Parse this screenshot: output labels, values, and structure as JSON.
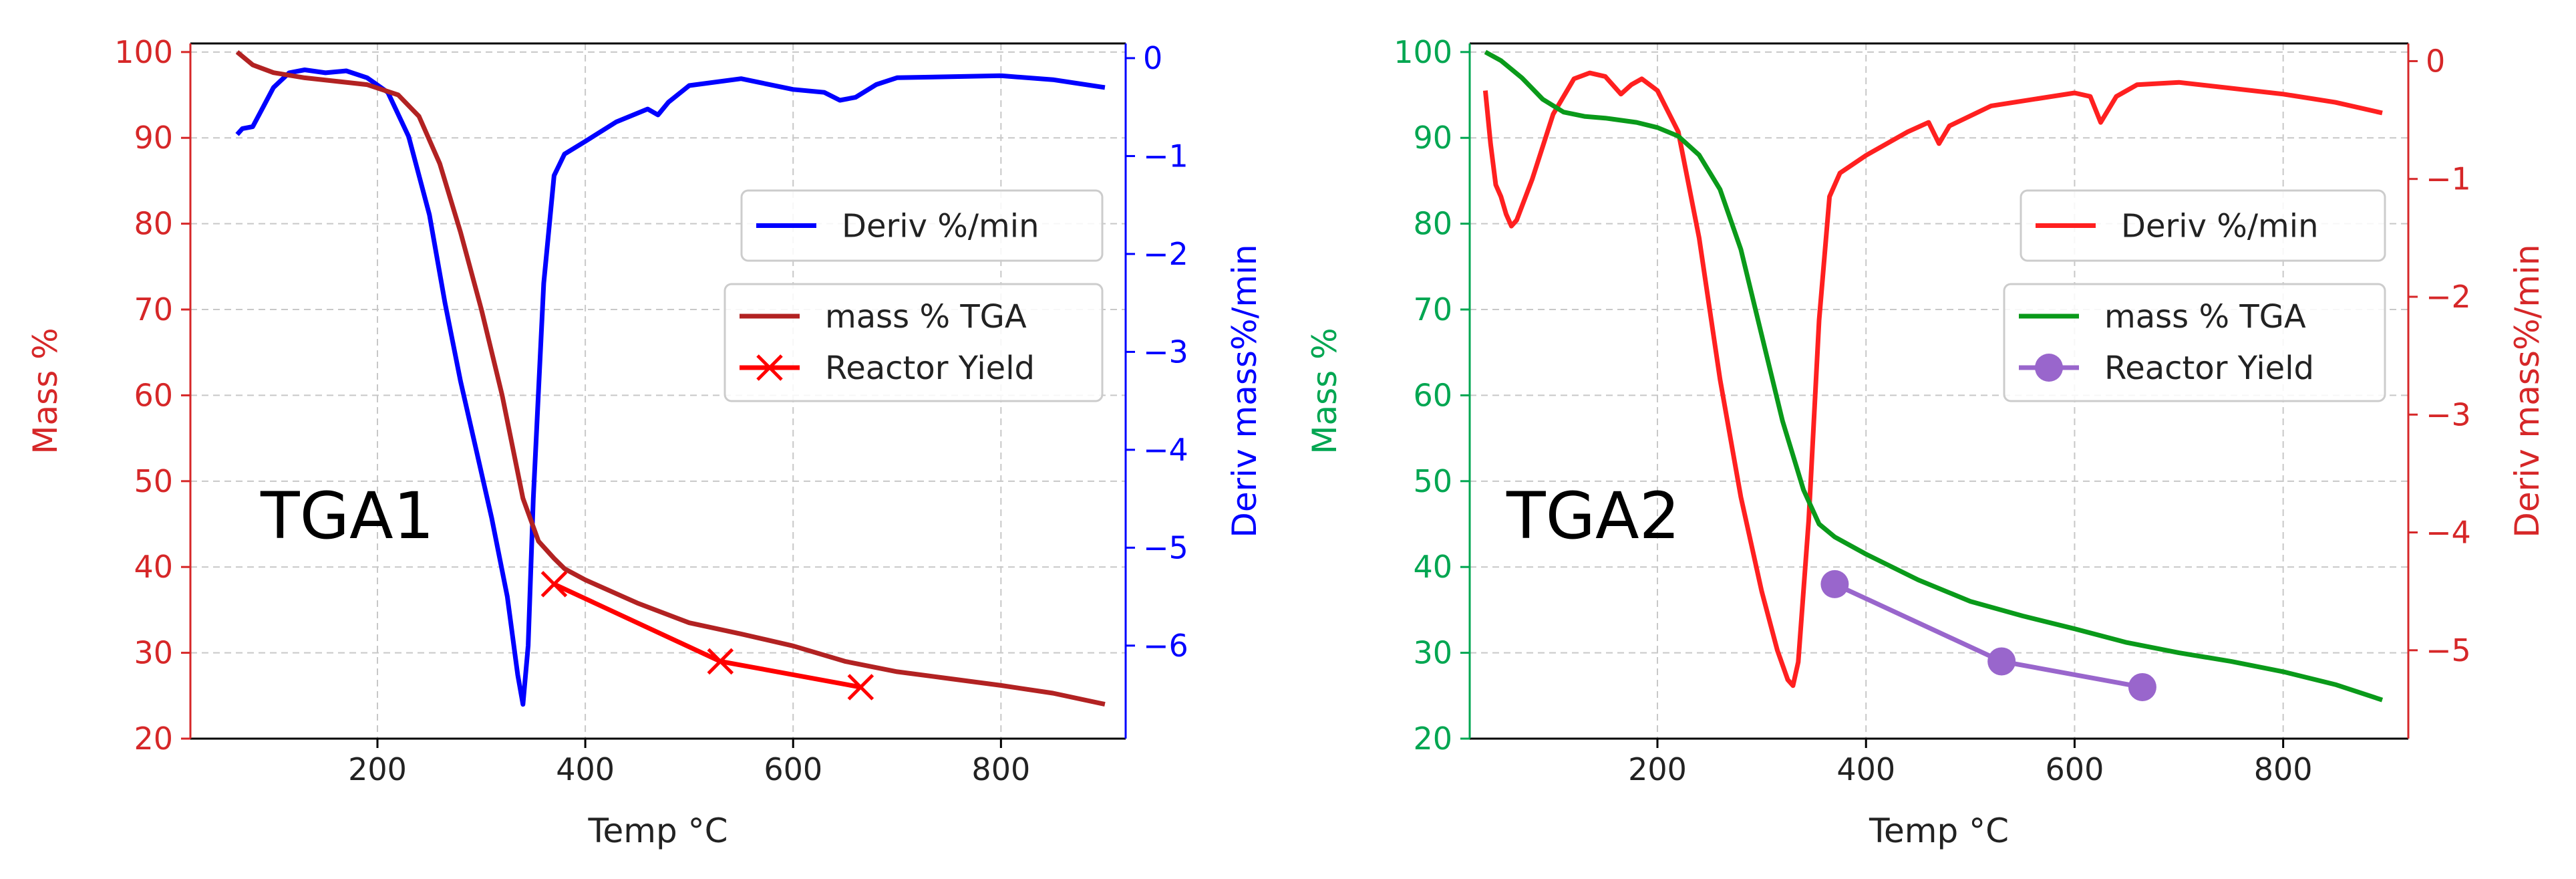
{
  "chart_data": [
    {
      "type": "line",
      "title_label": "TGA1",
      "xlabel": "Temp °C",
      "ylabel_left": "Mass %",
      "ylabel_right": "Deriv mass%/min",
      "xlim": [
        20,
        920
      ],
      "ylim_left": [
        20,
        101
      ],
      "ylim_right": [
        -6.95,
        0.15
      ],
      "x_ticks": [
        200,
        400,
        600,
        800
      ],
      "y_ticks_left": [
        20,
        30,
        40,
        50,
        60,
        70,
        80,
        90,
        100
      ],
      "y_ticks_right": [
        0,
        -1,
        -2,
        -3,
        -4,
        -5,
        -6
      ],
      "grid": true,
      "colors": {
        "left_axis": "#d62728",
        "right_axis": "#0000ff",
        "mass": "#b22222",
        "deriv": "#0000ff",
        "yield": "#ff0000"
      },
      "series": [
        {
          "name": "mass % TGA",
          "axis": "left",
          "x": [
            65,
            80,
            100,
            130,
            160,
            190,
            220,
            240,
            260,
            280,
            300,
            320,
            340,
            355,
            370,
            380,
            400,
            450,
            500,
            550,
            600,
            650,
            700,
            750,
            800,
            850,
            900
          ],
          "y": [
            100,
            98.5,
            97.6,
            97,
            96.6,
            96.2,
            95,
            92.5,
            87,
            79,
            70,
            60,
            48,
            43,
            41,
            39.8,
            38.5,
            35.8,
            33.5,
            32.2,
            30.8,
            29,
            27.8,
            27,
            26.2,
            25.3,
            24
          ]
        },
        {
          "name": "Deriv %/min",
          "axis": "right",
          "x": [
            65,
            70,
            80,
            90,
            100,
            115,
            130,
            150,
            170,
            190,
            210,
            230,
            250,
            265,
            280,
            295,
            310,
            325,
            335,
            340,
            345,
            350,
            360,
            370,
            380,
            400,
            430,
            460,
            470,
            480,
            500,
            550,
            600,
            630,
            645,
            660,
            680,
            700,
            800,
            850,
            900
          ],
          "y": [
            -0.78,
            -0.72,
            -0.7,
            -0.5,
            -0.3,
            -0.15,
            -0.12,
            -0.15,
            -0.13,
            -0.2,
            -0.35,
            -0.8,
            -1.6,
            -2.5,
            -3.3,
            -4.0,
            -4.7,
            -5.5,
            -6.3,
            -6.6,
            -6.0,
            -4.5,
            -2.3,
            -1.2,
            -0.98,
            -0.85,
            -0.65,
            -0.52,
            -0.58,
            -0.45,
            -0.28,
            -0.21,
            -0.32,
            -0.35,
            -0.43,
            -0.4,
            -0.27,
            -0.2,
            -0.18,
            -0.22,
            -0.3
          ]
        },
        {
          "name": "Reactor Yield",
          "axis": "left",
          "marker": "x",
          "x": [
            370,
            530,
            665
          ],
          "y": [
            38,
            29,
            26
          ]
        }
      ],
      "legend": [
        {
          "label": "Deriv %/min"
        },
        {
          "label": "mass % TGA"
        },
        {
          "label": "Reactor Yield"
        }
      ]
    },
    {
      "type": "line",
      "title_label": "TGA2",
      "xlabel": "Temp °C",
      "ylabel_left": "Mass %",
      "ylabel_right": "Deriv mass%/min",
      "xlim": [
        20,
        920
      ],
      "ylim_left": [
        20,
        101
      ],
      "ylim_right": [
        -5.75,
        0.15
      ],
      "x_ticks": [
        200,
        400,
        600,
        800
      ],
      "y_ticks_left": [
        20,
        30,
        40,
        50,
        60,
        70,
        80,
        90,
        100
      ],
      "y_ticks_right": [
        0,
        -1,
        -2,
        -3,
        -4,
        -5
      ],
      "grid": true,
      "colors": {
        "left_axis": "#00a651",
        "right_axis": "#d62728",
        "mass": "#0a9a1a",
        "deriv": "#ff2020",
        "yield": "#9966cc"
      },
      "series": [
        {
          "name": "mass % TGA",
          "axis": "left",
          "x": [
            35,
            50,
            70,
            90,
            110,
            130,
            150,
            180,
            200,
            220,
            240,
            260,
            280,
            300,
            320,
            340,
            355,
            370,
            400,
            450,
            500,
            550,
            600,
            650,
            700,
            750,
            800,
            850,
            895
          ],
          "y": [
            100,
            99,
            97,
            94.5,
            93,
            92.5,
            92.3,
            91.8,
            91.2,
            90.2,
            88,
            84,
            77,
            67,
            57,
            49,
            45,
            43.5,
            41.5,
            38.5,
            36,
            34.3,
            32.8,
            31.2,
            30,
            29,
            27.8,
            26.3,
            24.5
          ]
        },
        {
          "name": "Deriv %/min",
          "axis": "right",
          "x": [
            35,
            40,
            45,
            50,
            55,
            60,
            65,
            80,
            100,
            120,
            135,
            150,
            165,
            175,
            185,
            200,
            220,
            240,
            260,
            280,
            300,
            315,
            325,
            330,
            335,
            345,
            355,
            365,
            375,
            400,
            440,
            460,
            470,
            480,
            520,
            600,
            615,
            625,
            640,
            660,
            700,
            800,
            850,
            895
          ],
          "y": [
            -0.25,
            -0.7,
            -1.05,
            -1.15,
            -1.3,
            -1.4,
            -1.35,
            -1.0,
            -0.45,
            -0.15,
            -0.1,
            -0.13,
            -0.28,
            -0.2,
            -0.15,
            -0.25,
            -0.6,
            -1.5,
            -2.7,
            -3.7,
            -4.5,
            -5.0,
            -5.25,
            -5.3,
            -5.1,
            -3.9,
            -2.2,
            -1.15,
            -0.95,
            -0.8,
            -0.6,
            -0.52,
            -0.7,
            -0.55,
            -0.38,
            -0.27,
            -0.3,
            -0.52,
            -0.3,
            -0.2,
            -0.18,
            -0.28,
            -0.35,
            -0.44
          ]
        },
        {
          "name": "Reactor Yield",
          "axis": "left",
          "marker": "o",
          "x": [
            370,
            530,
            665
          ],
          "y": [
            38,
            29,
            26
          ]
        }
      ],
      "legend": [
        {
          "label": "Deriv %/min"
        },
        {
          "label": "mass % TGA"
        },
        {
          "label": "Reactor Yield"
        }
      ]
    }
  ]
}
